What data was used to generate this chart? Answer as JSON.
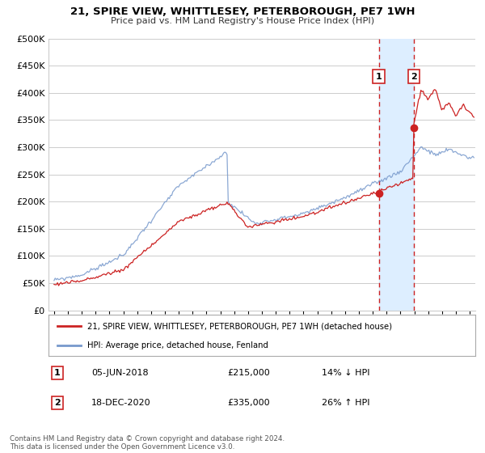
{
  "title": "21, SPIRE VIEW, WHITTLESEY, PETERBOROUGH, PE7 1WH",
  "subtitle": "Price paid vs. HM Land Registry's House Price Index (HPI)",
  "ytick_values": [
    0,
    50000,
    100000,
    150000,
    200000,
    250000,
    300000,
    350000,
    400000,
    450000,
    500000
  ],
  "ylim": [
    0,
    500000
  ],
  "xlim_start": 1994.6,
  "xlim_end": 2025.4,
  "xticks": [
    1995,
    1996,
    1997,
    1998,
    1999,
    2000,
    2001,
    2002,
    2003,
    2004,
    2005,
    2006,
    2007,
    2008,
    2009,
    2010,
    2011,
    2012,
    2013,
    2014,
    2015,
    2016,
    2017,
    2018,
    2019,
    2020,
    2021,
    2022,
    2023,
    2024,
    2025
  ],
  "hpi_color": "#7799cc",
  "price_color": "#cc2222",
  "sale1_date": 2018.43,
  "sale1_price": 215000,
  "sale1_label": "1",
  "sale2_date": 2020.96,
  "sale2_price": 335000,
  "sale2_label": "2",
  "legend_price_label": "21, SPIRE VIEW, WHITTLESEY, PETERBOROUGH, PE7 1WH (detached house)",
  "legend_hpi_label": "HPI: Average price, detached house, Fenland",
  "annotation1_date": "05-JUN-2018",
  "annotation1_price": "£215,000",
  "annotation1_hpi": "14% ↓ HPI",
  "annotation2_date": "18-DEC-2020",
  "annotation2_price": "£335,000",
  "annotation2_hpi": "26% ↑ HPI",
  "footer": "Contains HM Land Registry data © Crown copyright and database right 2024.\nThis data is licensed under the Open Government Licence v3.0.",
  "bg_color": "#ffffff",
  "grid_color": "#cccccc",
  "vline_color": "#cc2222",
  "span_color": "#ddeeff"
}
